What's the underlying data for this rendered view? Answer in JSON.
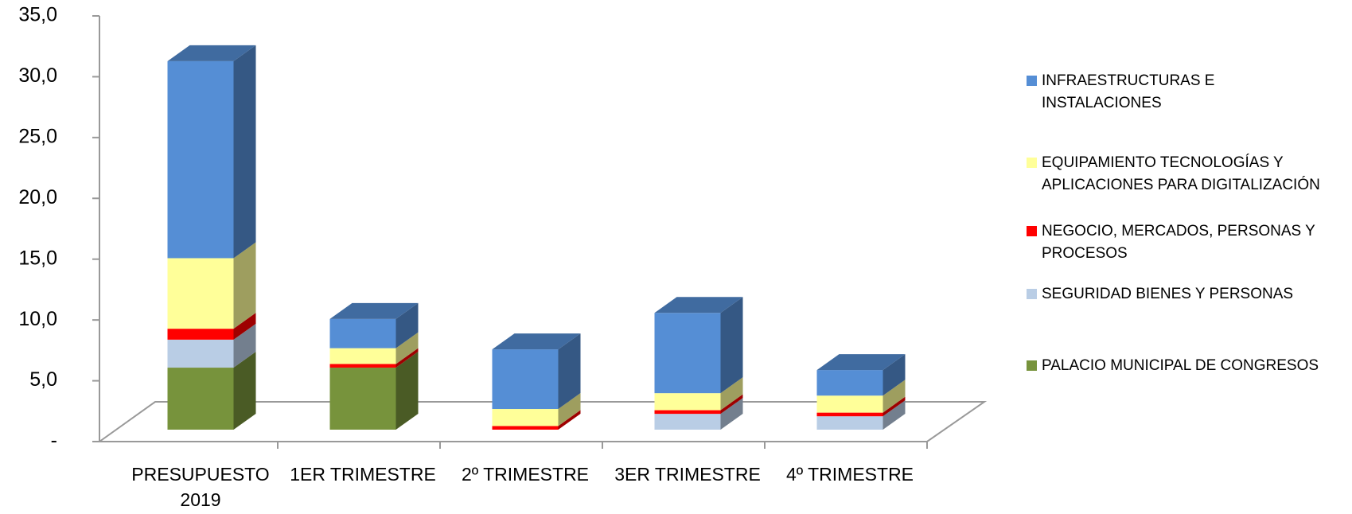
{
  "chart_data": {
    "type": "bar3d_stacked",
    "categories": [
      "PRESUPUESTO 2019",
      "1ER TRIMESTRE",
      "2º TRIMESTRE",
      "3ER TRIMESTRE",
      "4º TRIMESTRE"
    ],
    "series": [
      {
        "name": "PALACIO MUNICIPAL DE CONGRESOS",
        "color": "#77933c",
        "values": [
          5.1,
          5.1,
          0,
          0,
          0
        ]
      },
      {
        "name": "SEGURIDAD BIENES Y PERSONAS",
        "color": "#b9cde5",
        "values": [
          2.3,
          0,
          0,
          1.3,
          1.1
        ]
      },
      {
        "name": "NEGOCIO, MERCADOS, PERSONAS Y PROCESOS",
        "color": "#ff0000",
        "values": [
          0.9,
          0.3,
          0.3,
          0.3,
          0.3
        ]
      },
      {
        "name": "EQUIPAMIENTO TECNOLOGÍAS Y APLICACIONES PARA DIGITALIZACIÓN",
        "color": "#ffff99",
        "values": [
          5.8,
          1.3,
          1.4,
          1.4,
          1.4
        ]
      },
      {
        "name": "INFRAESTRUCTURAS E INSTALACIONES",
        "color": "#558ed5",
        "values": [
          16.2,
          2.4,
          4.9,
          6.6,
          2.1
        ]
      }
    ],
    "ylim": [
      0,
      35
    ],
    "yticks": [
      {
        "value": 0,
        "label": "-"
      },
      {
        "value": 5,
        "label": "5,0"
      },
      {
        "value": 10,
        "label": "10,0"
      },
      {
        "value": 15,
        "label": "15,0"
      },
      {
        "value": 20,
        "label": "20,0"
      },
      {
        "value": 25,
        "label": "25,0"
      },
      {
        "value": 30,
        "label": "30,0"
      },
      {
        "value": 35,
        "label": "35,0"
      }
    ]
  }
}
